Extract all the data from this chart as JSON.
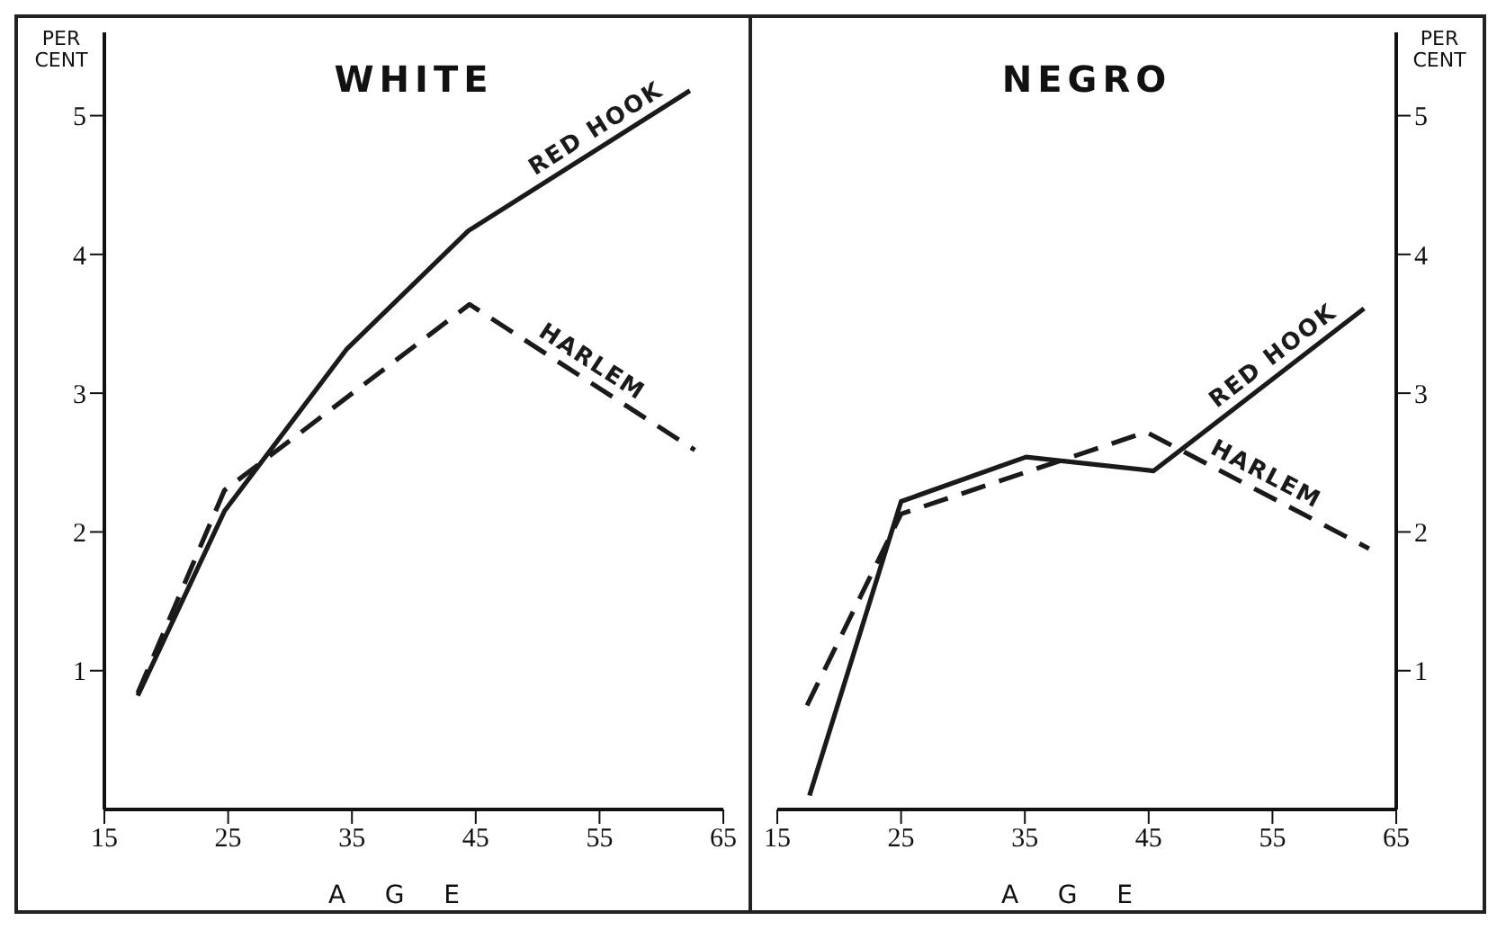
{
  "chart_data": [
    {
      "type": "line",
      "title": "WHITE",
      "xlabel": "AGE",
      "ylabel": "PER CENT",
      "xlim": [
        15,
        65
      ],
      "xticks": [
        15,
        25,
        35,
        45,
        55,
        65
      ],
      "ylim": [
        0,
        5.6
      ],
      "yticks": [
        1,
        2,
        3,
        4,
        5
      ],
      "grid": false,
      "legend": false,
      "series": [
        {
          "name": "RED HOOK",
          "color": "#1a1a1a",
          "line_style": "solid",
          "x": [
            17.7,
            24.7,
            34.6,
            44.4,
            62.3
          ],
          "values": [
            0.82,
            2.15,
            3.32,
            4.17,
            5.18
          ]
        },
        {
          "name": "HARLEM",
          "color": "#1a1a1a",
          "line_style": "dashed",
          "x": [
            17.7,
            24.7,
            44.5,
            62.7
          ],
          "values": [
            0.84,
            2.3,
            3.64,
            2.59
          ]
        }
      ]
    },
    {
      "type": "line",
      "title": "NEGRO",
      "xlabel": "AGE",
      "ylabel": "PER CENT",
      "xlim": [
        15,
        65
      ],
      "xticks": [
        15,
        25,
        35,
        45,
        55,
        65
      ],
      "ylim": [
        0,
        5.6
      ],
      "yticks": [
        1,
        2,
        3,
        4,
        5
      ],
      "grid": false,
      "legend": false,
      "series": [
        {
          "name": "RED HOOK",
          "color": "#1a1a1a",
          "line_style": "solid",
          "x": [
            17.6,
            25,
            35.1,
            45.4,
            62.4
          ],
          "values": [
            0.1,
            2.22,
            2.54,
            2.44,
            3.61
          ]
        },
        {
          "name": "HARLEM",
          "color": "#1a1a1a",
          "line_style": "dashed",
          "x": [
            17.4,
            25,
            44.8,
            62.8
          ],
          "values": [
            0.75,
            2.13,
            2.72,
            1.88
          ]
        }
      ]
    }
  ]
}
